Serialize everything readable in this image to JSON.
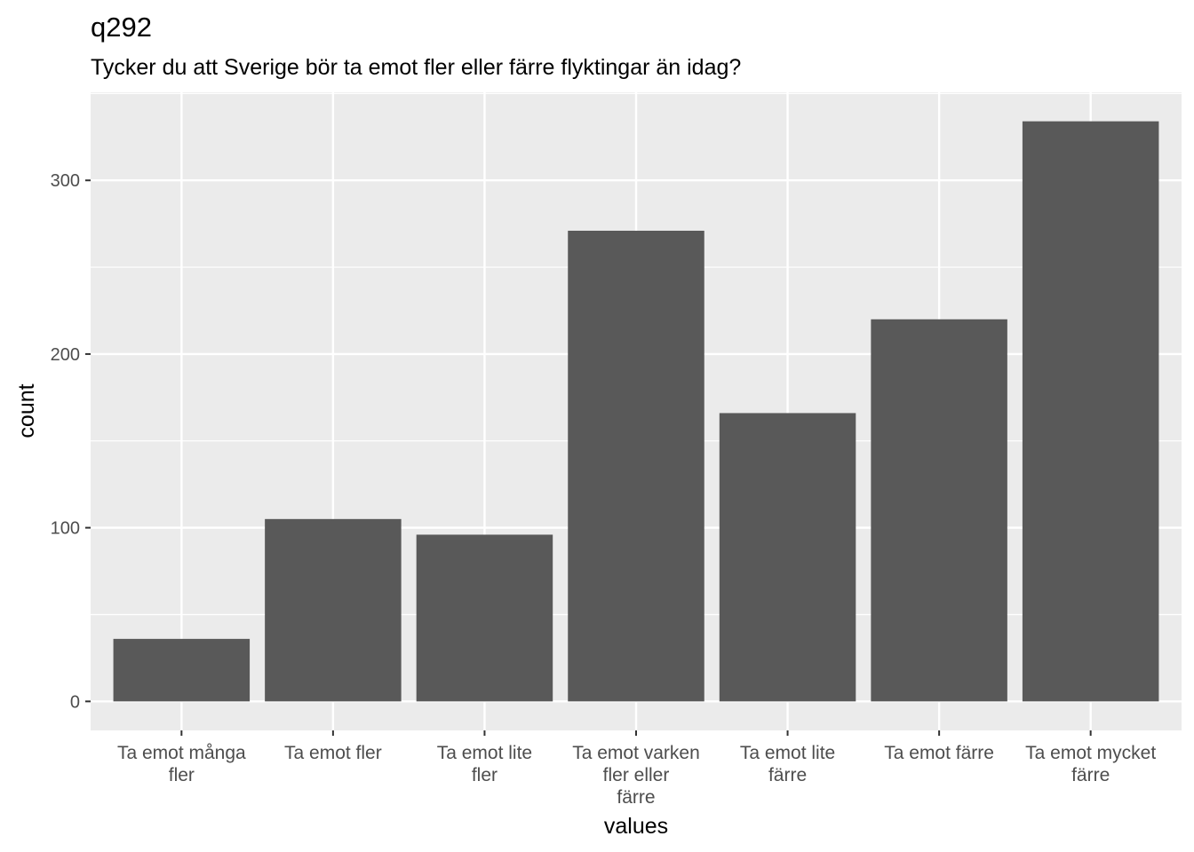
{
  "chart_data": {
    "type": "bar",
    "title": "q292",
    "subtitle": "Tycker du att Sverige bör ta emot fler eller färre flyktingar än idag?",
    "xlabel": "values",
    "ylabel": "count",
    "categories": [
      [
        "Ta emot många",
        "fler"
      ],
      [
        "Ta emot fler"
      ],
      [
        "Ta emot lite",
        "fler"
      ],
      [
        "Ta emot varken",
        "fler eller",
        "färre"
      ],
      [
        "Ta emot lite",
        "färre"
      ],
      [
        "Ta emot färre"
      ],
      [
        "Ta emot mycket",
        "färre"
      ]
    ],
    "values": [
      36,
      105,
      96,
      271,
      166,
      220,
      334
    ],
    "ylim": [
      -16.7,
      350.7
    ],
    "yticks": [
      0,
      100,
      200,
      300
    ],
    "grid": true,
    "colors": {
      "bar": "#595959",
      "panel": "#ebebeb",
      "grid": "#ffffff",
      "text": "#000000",
      "tick_text": "#4d4d4d",
      "tick": "#333333"
    }
  }
}
